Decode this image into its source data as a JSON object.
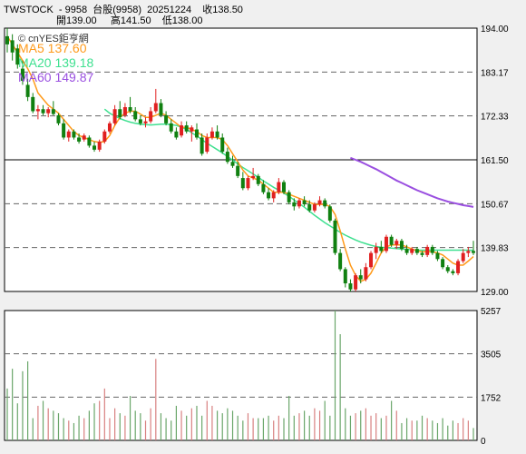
{
  "header": {
    "line1": "TWSTOCK  - 9958  台股(9958)  20251224    收138.50",
    "line2": "開139.00     高141.50    低138.00"
  },
  "legend": {
    "source": "© cnYES鉅亨網",
    "ma5": "MA5 137.60",
    "ma20": "MA20 139.18",
    "ma60": "MA60 149.87"
  },
  "colors": {
    "up": "#e02020",
    "down": "#108010",
    "ma5": "#ff9a1a",
    "ma20": "#3fe090",
    "ma60": "#9a4fe0",
    "vol": "#d88080"
  },
  "chart_data": [
    {
      "type": "candlestick",
      "y_ticks": [
        "194.00",
        "183.17",
        "172.33",
        "161.50",
        "150.67",
        "139.83",
        "129.00"
      ],
      "ylim": [
        129,
        194
      ],
      "ohlc": [
        [
          192.0,
          194.0,
          188.0,
          190.0
        ],
        [
          191.0,
          192.5,
          186.0,
          188.0
        ],
        [
          189.0,
          190.0,
          184.0,
          185.0
        ],
        [
          184.0,
          186.0,
          180.0,
          181.0
        ],
        [
          180.0,
          181.5,
          176.0,
          177.0
        ],
        [
          177.0,
          178.0,
          173.0,
          173.5
        ],
        [
          173.5,
          175.0,
          171.5,
          174.0
        ],
        [
          174.0,
          175.0,
          172.5,
          173.0
        ],
        [
          173.0,
          174.5,
          172.0,
          174.0
        ],
        [
          174.0,
          176.0,
          172.5,
          172.8
        ],
        [
          172.5,
          173.0,
          170.0,
          170.5
        ],
        [
          170.5,
          171.5,
          166.5,
          167.0
        ],
        [
          167.0,
          169.0,
          166.0,
          168.5
        ],
        [
          168.5,
          169.0,
          166.5,
          167.0
        ],
        [
          167.0,
          168.0,
          165.5,
          166.0
        ],
        [
          166.5,
          168.0,
          166.0,
          167.5
        ],
        [
          167.0,
          167.5,
          164.5,
          165.0
        ],
        [
          165.0,
          166.0,
          163.5,
          164.0
        ],
        [
          164.0,
          166.5,
          163.5,
          166.0
        ],
        [
          166.0,
          169.0,
          165.5,
          168.5
        ],
        [
          168.5,
          171.0,
          168.0,
          170.5
        ],
        [
          170.5,
          175.0,
          170.0,
          174.0
        ],
        [
          174.0,
          176.0,
          171.5,
          172.0
        ],
        [
          172.5,
          175.5,
          172.0,
          174.5
        ],
        [
          174.5,
          177.0,
          173.0,
          173.5
        ],
        [
          173.5,
          174.5,
          171.0,
          171.5
        ],
        [
          171.5,
          172.5,
          170.0,
          170.5
        ],
        [
          170.5,
          172.0,
          169.5,
          171.0
        ],
        [
          171.0,
          174.5,
          170.5,
          173.5
        ],
        [
          173.5,
          179.0,
          173.0,
          175.5
        ],
        [
          175.5,
          176.5,
          172.0,
          172.5
        ],
        [
          172.5,
          173.5,
          170.0,
          170.5
        ],
        [
          170.5,
          171.5,
          168.0,
          168.5
        ],
        [
          168.5,
          169.5,
          166.5,
          167.0
        ],
        [
          167.5,
          171.0,
          167.0,
          170.0
        ],
        [
          170.0,
          171.0,
          168.0,
          168.5
        ],
        [
          168.5,
          170.0,
          166.0,
          169.5
        ],
        [
          169.0,
          170.5,
          166.5,
          167.0
        ],
        [
          167.0,
          168.0,
          162.5,
          163.0
        ],
        [
          163.5,
          168.0,
          163.0,
          167.0
        ],
        [
          167.0,
          169.5,
          166.5,
          168.5
        ],
        [
          168.5,
          170.0,
          166.5,
          167.0
        ],
        [
          167.0,
          168.0,
          163.0,
          163.5
        ],
        [
          163.5,
          164.5,
          160.5,
          161.0
        ],
        [
          161.0,
          162.5,
          159.5,
          160.0
        ],
        [
          160.0,
          161.0,
          157.0,
          157.5
        ],
        [
          157.0,
          158.5,
          154.0,
          154.5
        ],
        [
          154.5,
          157.5,
          154.0,
          157.0
        ],
        [
          157.0,
          159.5,
          156.5,
          157.5
        ],
        [
          157.5,
          158.0,
          155.0,
          155.5
        ],
        [
          155.5,
          156.5,
          153.0,
          153.5
        ],
        [
          153.5,
          154.5,
          151.5,
          152.0
        ],
        [
          152.0,
          154.0,
          151.0,
          153.5
        ],
        [
          153.5,
          157.0,
          153.0,
          156.0
        ],
        [
          156.0,
          156.5,
          153.0,
          153.5
        ],
        [
          153.5,
          154.0,
          150.5,
          151.0
        ],
        [
          151.0,
          152.0,
          149.0,
          150.0
        ],
        [
          150.0,
          152.0,
          149.5,
          151.5
        ],
        [
          151.5,
          152.5,
          150.0,
          150.5
        ],
        [
          150.5,
          151.5,
          148.5,
          149.0
        ],
        [
          149.0,
          151.0,
          148.5,
          150.5
        ],
        [
          150.5,
          152.5,
          150.0,
          151.5
        ],
        [
          151.5,
          152.0,
          149.5,
          150.0
        ],
        [
          150.0,
          150.5,
          146.0,
          146.5
        ],
        [
          146.5,
          147.0,
          138.0,
          138.5
        ],
        [
          138.5,
          139.5,
          134.0,
          134.5
        ],
        [
          134.5,
          135.0,
          130.0,
          131.0
        ],
        [
          131.0,
          132.0,
          129.0,
          129.5
        ],
        [
          129.5,
          133.5,
          129.0,
          133.0
        ],
        [
          133.0,
          134.5,
          131.0,
          132.0
        ],
        [
          132.0,
          136.0,
          131.5,
          135.0
        ],
        [
          135.0,
          139.0,
          134.5,
          138.5
        ],
        [
          138.5,
          141.0,
          137.0,
          140.0
        ],
        [
          140.0,
          141.5,
          138.5,
          139.0
        ],
        [
          139.0,
          143.0,
          138.5,
          142.5
        ],
        [
          142.5,
          143.0,
          140.0,
          140.5
        ],
        [
          140.5,
          142.0,
          139.5,
          141.5
        ],
        [
          141.5,
          142.0,
          139.0,
          139.5
        ],
        [
          139.5,
          140.5,
          138.0,
          138.5
        ],
        [
          138.5,
          140.0,
          138.0,
          139.5
        ],
        [
          139.5,
          140.0,
          138.0,
          138.5
        ],
        [
          138.5,
          139.0,
          137.5,
          138.0
        ],
        [
          138.0,
          140.5,
          137.5,
          140.0
        ],
        [
          140.0,
          140.5,
          138.0,
          138.5
        ],
        [
          138.5,
          139.0,
          136.5,
          137.0
        ],
        [
          137.0,
          137.5,
          134.5,
          135.0
        ],
        [
          135.0,
          135.5,
          133.5,
          134.0
        ],
        [
          134.0,
          134.5,
          133.0,
          133.5
        ],
        [
          133.5,
          137.0,
          133.0,
          136.5
        ],
        [
          136.5,
          139.5,
          136.0,
          138.5
        ],
        [
          138.5,
          140.0,
          137.5,
          139.0
        ],
        [
          139.0,
          141.5,
          138.0,
          138.5
        ]
      ],
      "ma5": [
        192.0,
        190.0,
        188.0,
        186.0,
        184.0,
        181.5,
        178.0,
        176.5,
        175.0,
        174.0,
        173.0,
        171.5,
        170.0,
        168.5,
        167.5,
        167.0,
        166.5,
        166.0,
        165.8,
        166.0,
        167.5,
        170.0,
        172.0,
        173.0,
        173.5,
        173.5,
        172.8,
        172.0,
        172.0,
        172.5,
        173.0,
        172.5,
        171.5,
        170.5,
        169.5,
        169.5,
        169.0,
        168.5,
        167.5,
        167.0,
        167.0,
        167.0,
        166.5,
        165.0,
        163.0,
        161.0,
        159.0,
        157.5,
        157.0,
        156.5,
        155.5,
        154.5,
        153.5,
        153.5,
        153.5,
        153.0,
        152.5,
        152.0,
        151.5,
        151.0,
        150.5,
        150.5,
        150.5,
        150.0,
        148.0,
        144.0,
        139.5,
        135.5,
        133.0,
        131.5,
        132.0,
        133.5,
        136.0,
        138.5,
        140.0,
        140.5,
        140.5,
        140.5,
        140.0,
        139.5,
        139.0,
        138.8,
        138.8,
        138.8,
        138.5,
        138.0,
        137.0,
        136.0,
        135.5,
        135.5,
        136.5,
        137.6
      ],
      "ma20": [
        null,
        null,
        null,
        null,
        null,
        null,
        null,
        null,
        null,
        null,
        null,
        null,
        null,
        null,
        null,
        null,
        null,
        null,
        null,
        174.0,
        173.0,
        172.3,
        171.7,
        171.2,
        170.8,
        170.5,
        170.3,
        170.2,
        170.1,
        170.2,
        170.3,
        170.3,
        170.2,
        170.0,
        169.6,
        169.0,
        168.2,
        167.4,
        166.5,
        165.6,
        164.8,
        164.0,
        163.2,
        162.3,
        161.4,
        160.5,
        159.6,
        158.8,
        158.0,
        157.2,
        156.3,
        155.5,
        154.7,
        154.0,
        153.3,
        152.5,
        151.6,
        150.7,
        149.8,
        148.8,
        147.8,
        146.9,
        146.0,
        145.2,
        144.4,
        143.6,
        142.9,
        142.3,
        141.7,
        141.2,
        140.8,
        140.4,
        140.1,
        139.9,
        139.8,
        139.7,
        139.6,
        139.5,
        139.4,
        139.3,
        139.2,
        139.2,
        139.2,
        139.2,
        139.2,
        139.2,
        139.2,
        139.2,
        139.2,
        139.2,
        139.2,
        139.18
      ],
      "ma60": [
        null,
        null,
        null,
        null,
        null,
        null,
        null,
        null,
        null,
        null,
        null,
        null,
        null,
        null,
        null,
        null,
        null,
        null,
        null,
        null,
        null,
        null,
        null,
        null,
        null,
        null,
        null,
        null,
        null,
        null,
        null,
        null,
        null,
        null,
        null,
        null,
        null,
        null,
        null,
        null,
        null,
        null,
        null,
        null,
        null,
        null,
        null,
        null,
        null,
        null,
        null,
        null,
        null,
        null,
        null,
        null,
        null,
        null,
        null,
        null,
        null,
        null,
        null,
        null,
        null,
        null,
        null,
        162.0,
        161.5,
        161.0,
        160.4,
        159.8,
        159.2,
        158.5,
        157.8,
        157.1,
        156.4,
        155.8,
        155.2,
        154.6,
        154.0,
        153.5,
        153.0,
        152.5,
        152.0,
        151.6,
        151.2,
        150.9,
        150.6,
        150.3,
        150.1,
        149.87
      ]
    },
    {
      "type": "bar",
      "y_ticks": [
        "5257",
        "3505",
        "1752",
        "0"
      ],
      "ylim": [
        0,
        5257
      ],
      "values": [
        2100,
        2900,
        1500,
        2800,
        3200,
        900,
        1400,
        1600,
        1300,
        1200,
        1100,
        900,
        800,
        700,
        1000,
        900,
        1200,
        1500,
        1600,
        2100,
        900,
        1300,
        1100,
        1000,
        1800,
        1200,
        1100,
        800,
        1300,
        3300,
        1100,
        900,
        800,
        1400,
        1200,
        1000,
        1300,
        1400,
        1000,
        1600,
        1400,
        1200,
        1100,
        1300,
        1200,
        1000,
        800,
        1100,
        900,
        900,
        900,
        1000,
        800,
        1000,
        900,
        1800,
        1000,
        1100,
        1200,
        1000,
        1300,
        1200,
        1600,
        1000,
        5257,
        4300,
        1300,
        1000,
        1100,
        1200,
        1300,
        1000,
        1100,
        900,
        1000,
        1600,
        1200,
        700,
        900,
        800,
        800,
        1000,
        900,
        800,
        700,
        900,
        600,
        800,
        700,
        900,
        800,
        500
      ]
    }
  ]
}
